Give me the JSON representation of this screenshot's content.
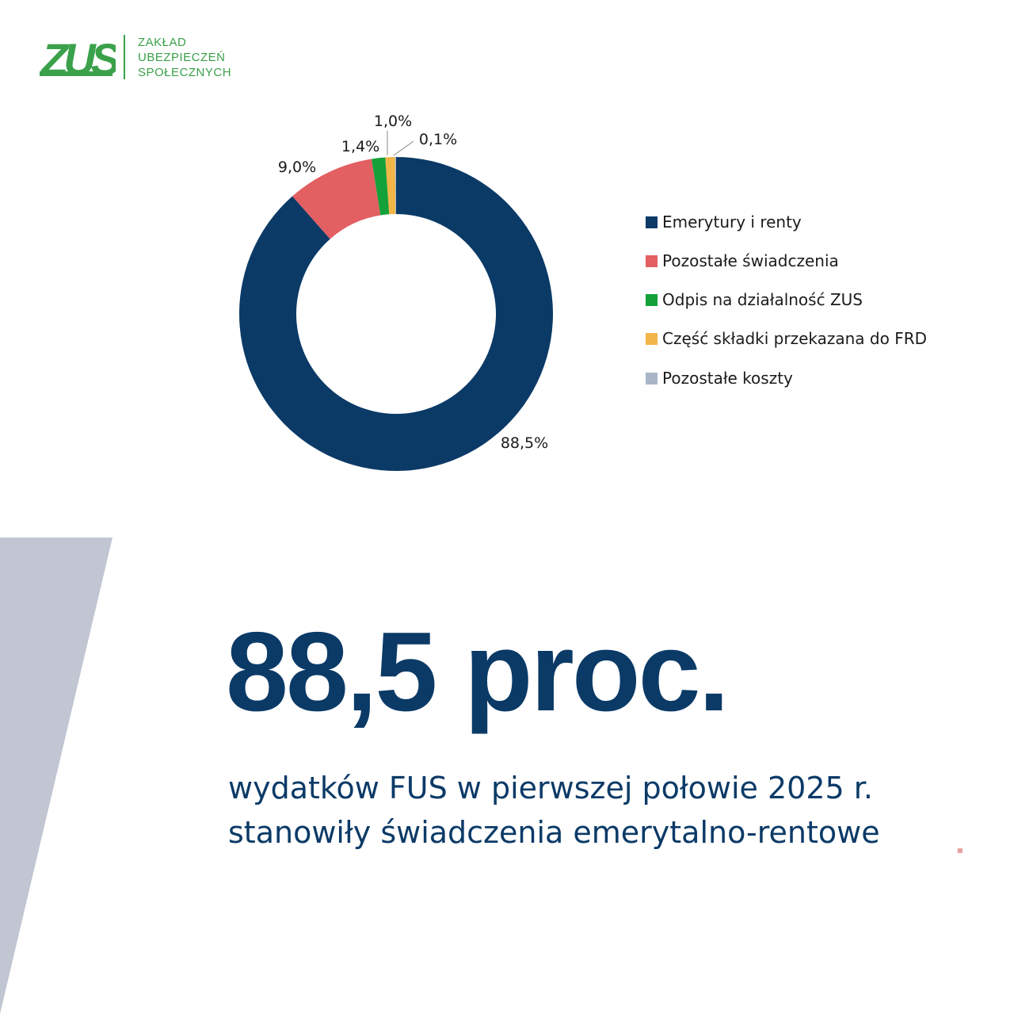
{
  "logo": {
    "mark_text": "ZUS",
    "lines": [
      "ZAKŁAD",
      "UBEZPIECZEŃ",
      "SPOŁECZNYCH"
    ],
    "color": "#3aa14a"
  },
  "chart_data": {
    "type": "pie",
    "style": "donut",
    "categories": [
      "Emerytury i renty",
      "Pozostałe świadczenia",
      "Odpis na działalność ZUS",
      "Część składki przekazana do FRD",
      "Pozostałe koszty"
    ],
    "values": [
      88.5,
      9.0,
      1.4,
      1.0,
      0.1
    ],
    "labels": [
      "88,5%",
      "9,0%",
      "1,4%",
      "1,0%",
      "0,1%"
    ],
    "colors": [
      "#0b3a67",
      "#e25f62",
      "#14a13a",
      "#f2b548",
      "#a9b6c8"
    ],
    "legend_position": "right"
  },
  "headline": {
    "number": "88,5 proc.",
    "line1": "wydatków FUS w pierwszej połowie 2025 r.",
    "line2": "stanowiły świadczenia emerytalno-rentowe",
    "color": "#0b3a67"
  },
  "decor": {
    "triangle_color": "#c1c6d2"
  }
}
